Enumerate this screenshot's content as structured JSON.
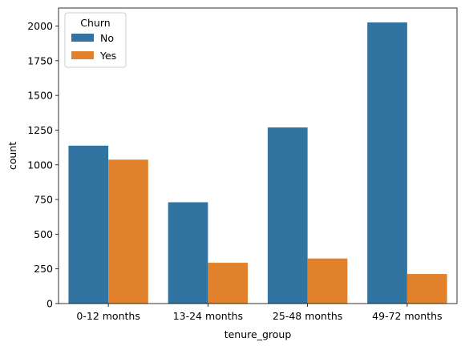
{
  "chart_data": {
    "type": "bar",
    "title": "",
    "xlabel": "tenure_group",
    "ylabel": "count",
    "categories": [
      "0-12 months",
      "13-24 months",
      "25-48 months",
      "49-72 months"
    ],
    "series": [
      {
        "name": "No",
        "color": "#3274a1",
        "values": [
          1138,
          730,
          1269,
          2026
        ]
      },
      {
        "name": "Yes",
        "color": "#e1812c",
        "values": [
          1037,
          294,
          325,
          213
        ]
      }
    ],
    "ylim": [
      0,
      2130
    ],
    "yticks": [
      0,
      250,
      500,
      750,
      1000,
      1250,
      1500,
      1750,
      2000
    ],
    "grid": false,
    "legend": {
      "title": "Churn",
      "placement": "top-left"
    }
  }
}
